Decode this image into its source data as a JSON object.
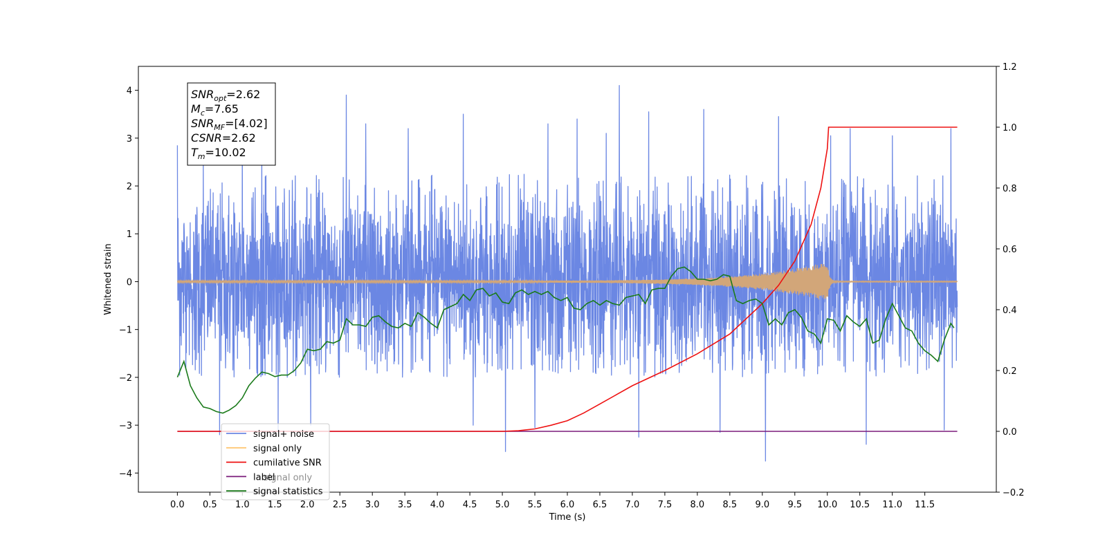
{
  "chart_data": {
    "type": "line",
    "xlabel": "Time (s)",
    "ylabel_left": "Whitened strain",
    "ylabel_right": "",
    "xlim": [
      -0.6,
      12.6
    ],
    "ylim_left": [
      -4.4,
      4.5
    ],
    "ylim_right": [
      -0.2,
      1.2
    ],
    "x_ticks": [
      0.0,
      0.5,
      1.0,
      1.5,
      2.0,
      2.5,
      3.0,
      3.5,
      4.0,
      4.5,
      5.0,
      5.5,
      6.0,
      6.5,
      7.0,
      7.5,
      8.0,
      8.5,
      9.0,
      9.5,
      10.0,
      10.5,
      11.0,
      11.5
    ],
    "x_tick_labels": [
      "0.0",
      "0.5",
      "1.0",
      "1.5",
      "2.0",
      "2.5",
      "3.0",
      "3.5",
      "4.0",
      "4.5",
      "5.0",
      "5.5",
      "6.0",
      "6.5",
      "7.0",
      "7.5",
      "8.0",
      "8.5",
      "9.0",
      "9.5",
      "10.0",
      "10.5",
      "11.0",
      "11.5"
    ],
    "y_left_ticks": [
      -4,
      -3,
      -2,
      -1,
      0,
      1,
      2,
      3,
      4
    ],
    "y_left_tick_labels": [
      "−4",
      "−3",
      "−2",
      "−1",
      "0",
      "1",
      "2",
      "3",
      "4"
    ],
    "y_right_ticks": [
      -0.2,
      0.0,
      0.2,
      0.4,
      0.6,
      0.8,
      1.0,
      1.2
    ],
    "y_right_tick_labels": [
      "−0.2",
      "0.0",
      "0.2",
      "0.4",
      "0.6",
      "0.8",
      "1.0",
      "1.2"
    ],
    "grid": false,
    "legend_placement": "lower-left",
    "series": [
      {
        "name": "signal+ noise",
        "axis": "left",
        "color": "#6b87e3",
        "kind": "noise",
        "t_range": [
          0.0,
          12.0
        ],
        "typical_range": [
          -2.0,
          2.2
        ],
        "peaks": [
          [
            0.0,
            2.85
          ],
          [
            0.4,
            2.5
          ],
          [
            0.65,
            -3.2
          ],
          [
            1.0,
            3.1
          ],
          [
            1.3,
            2.9
          ],
          [
            1.55,
            -3.1
          ],
          [
            2.05,
            -3.0
          ],
          [
            2.6,
            3.9
          ],
          [
            2.9,
            3.3
          ],
          [
            3.55,
            3.2
          ],
          [
            4.4,
            3.5
          ],
          [
            4.55,
            -3.0
          ],
          [
            5.05,
            -3.55
          ],
          [
            5.5,
            -3.05
          ],
          [
            5.7,
            3.3
          ],
          [
            6.15,
            3.4
          ],
          [
            6.6,
            3.1
          ],
          [
            6.8,
            4.1
          ],
          [
            7.1,
            -3.25
          ],
          [
            7.25,
            3.55
          ],
          [
            8.1,
            3.6
          ],
          [
            8.35,
            -3.15
          ],
          [
            9.05,
            -3.75
          ],
          [
            9.25,
            3.45
          ],
          [
            10.05,
            3.05
          ],
          [
            10.35,
            3.2
          ],
          [
            10.6,
            -3.4
          ],
          [
            11.0,
            3.05
          ],
          [
            11.8,
            -3.1
          ],
          [
            11.9,
            3.2
          ]
        ]
      },
      {
        "name": "signal only",
        "axis": "left",
        "color": "#d2a679",
        "kind": "chirp",
        "t_range": [
          0.0,
          12.0
        ],
        "merger_time": 10.0,
        "peak_amplitude": 0.4
      },
      {
        "name": "cumilative SNR",
        "axis": "right",
        "color": "#ee1111",
        "x": [
          0.0,
          5.0,
          5.25,
          5.5,
          5.75,
          6.0,
          6.25,
          6.5,
          6.75,
          7.0,
          7.5,
          8.0,
          8.5,
          9.0,
          9.25,
          9.5,
          9.75,
          9.9,
          10.0,
          10.02,
          12.0
        ],
        "y": [
          0.0,
          0.0,
          0.002,
          0.008,
          0.02,
          0.035,
          0.06,
          0.09,
          0.12,
          0.15,
          0.2,
          0.255,
          0.32,
          0.42,
          0.48,
          0.56,
          0.68,
          0.8,
          0.93,
          1.0,
          1.0
        ]
      },
      {
        "name": "label",
        "axis": "right",
        "color": "#7a1a7a",
        "x": [
          0.0,
          12.0
        ],
        "y": [
          0.0,
          0.0
        ]
      },
      {
        "name": "signal statistics",
        "axis": "right",
        "color": "#1a7a1a",
        "x": [
          0.0,
          0.1,
          0.2,
          0.3,
          0.4,
          0.5,
          0.6,
          0.7,
          0.8,
          0.9,
          1.0,
          1.1,
          1.2,
          1.3,
          1.4,
          1.5,
          1.6,
          1.7,
          1.8,
          1.9,
          2.0,
          2.1,
          2.2,
          2.3,
          2.4,
          2.5,
          2.6,
          2.7,
          2.8,
          2.9,
          3.0,
          3.1,
          3.2,
          3.3,
          3.4,
          3.5,
          3.6,
          3.7,
          3.8,
          3.9,
          4.0,
          4.1,
          4.2,
          4.3,
          4.4,
          4.5,
          4.6,
          4.7,
          4.8,
          4.9,
          5.0,
          5.1,
          5.2,
          5.3,
          5.4,
          5.5,
          5.6,
          5.7,
          5.8,
          5.9,
          6.0,
          6.1,
          6.2,
          6.3,
          6.4,
          6.5,
          6.6,
          6.7,
          6.8,
          6.9,
          7.0,
          7.1,
          7.2,
          7.3,
          7.4,
          7.5,
          7.6,
          7.7,
          7.8,
          7.9,
          8.0,
          8.1,
          8.2,
          8.3,
          8.4,
          8.5,
          8.6,
          8.7,
          8.8,
          8.9,
          9.0,
          9.1,
          9.2,
          9.3,
          9.4,
          9.5,
          9.6,
          9.7,
          9.8,
          9.9,
          10.0,
          10.1,
          10.2,
          10.3,
          10.4,
          10.5,
          10.6,
          10.7,
          10.8,
          10.9,
          11.0,
          11.1,
          11.2,
          11.3,
          11.4,
          11.5,
          11.6,
          11.7,
          11.8,
          11.9,
          11.95
        ],
        "y": [
          0.178,
          0.23,
          0.15,
          0.11,
          0.08,
          0.075,
          0.065,
          0.06,
          0.07,
          0.085,
          0.11,
          0.15,
          0.175,
          0.195,
          0.19,
          0.18,
          0.185,
          0.185,
          0.2,
          0.225,
          0.27,
          0.265,
          0.27,
          0.295,
          0.29,
          0.3,
          0.37,
          0.35,
          0.35,
          0.345,
          0.375,
          0.38,
          0.36,
          0.345,
          0.34,
          0.355,
          0.345,
          0.39,
          0.375,
          0.355,
          0.34,
          0.4,
          0.41,
          0.42,
          0.45,
          0.43,
          0.465,
          0.47,
          0.445,
          0.455,
          0.425,
          0.42,
          0.455,
          0.465,
          0.45,
          0.46,
          0.45,
          0.46,
          0.44,
          0.43,
          0.44,
          0.405,
          0.4,
          0.42,
          0.43,
          0.415,
          0.43,
          0.42,
          0.415,
          0.44,
          0.445,
          0.45,
          0.42,
          0.465,
          0.47,
          0.47,
          0.51,
          0.535,
          0.54,
          0.525,
          0.5,
          0.5,
          0.495,
          0.5,
          0.515,
          0.51,
          0.43,
          0.42,
          0.43,
          0.435,
          0.42,
          0.35,
          0.37,
          0.35,
          0.39,
          0.4,
          0.375,
          0.33,
          0.32,
          0.29,
          0.37,
          0.365,
          0.33,
          0.38,
          0.36,
          0.345,
          0.37,
          0.29,
          0.3,
          0.37,
          0.42,
          0.38,
          0.34,
          0.33,
          0.29,
          0.265,
          0.25,
          0.23,
          0.3,
          0.355,
          0.34
        ]
      }
    ],
    "annotations": [
      {
        "name": "SNR",
        "sub": "opt",
        "value": "=2.62"
      },
      {
        "name": "M",
        "sub": "c",
        "value": "=7.65"
      },
      {
        "name": "SNR",
        "sub": "MF",
        "value": "=[4.02]"
      },
      {
        "name": "CSNR",
        "sub": "",
        "value": "=2.62"
      },
      {
        "name": "T",
        "sub": "m",
        "value": "=10.02"
      }
    ],
    "legend": [
      {
        "label": "signal+ noise",
        "color": "#6b87e3"
      },
      {
        "label": "signal only",
        "color": "#ffc773"
      },
      {
        "label": "cumilative SNR",
        "color": "#ee1111"
      },
      {
        "label": "label",
        "color": "#7a1a7a"
      },
      {
        "label": "signal statistics",
        "color": "#1a7a1a"
      }
    ],
    "hidden_legend_text": [
      "signal only",
      "s"
    ]
  }
}
